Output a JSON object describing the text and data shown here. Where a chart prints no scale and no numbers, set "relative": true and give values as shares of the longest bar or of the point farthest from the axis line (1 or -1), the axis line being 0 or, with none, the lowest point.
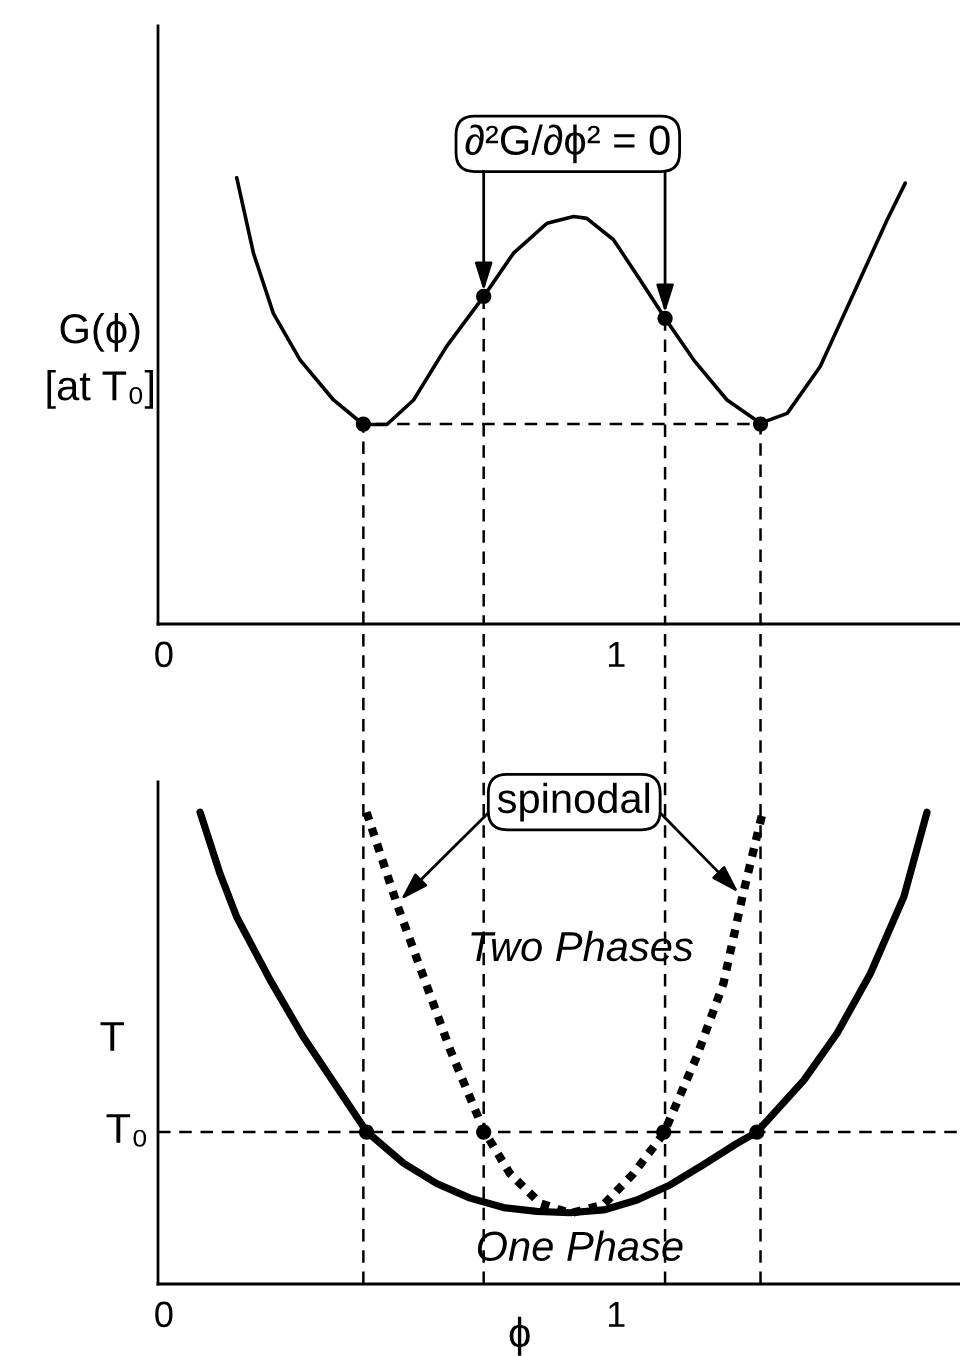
{
  "chart_data": [
    {
      "type": "line",
      "relative": true,
      "ylabel": "G(ϕ)\n[at T₀]",
      "xlim": [
        -0.013,
        1.76
      ],
      "xticks": [
        0,
        1
      ],
      "series": [
        {
          "color": "#000000",
          "line_style": "solid",
          "x": [
            0.161,
            0.198,
            0.242,
            0.301,
            0.375,
            0.441,
            0.493,
            0.552,
            0.625,
            0.707,
            0.773,
            0.847,
            0.906,
            0.935,
            0.994,
            1.053,
            1.108,
            1.171,
            1.245,
            1.319,
            1.378,
            1.451,
            1.525,
            1.599,
            1.639
          ],
          "values": [
            1.0,
            0.831,
            0.696,
            0.592,
            0.502,
            0.447,
            0.447,
            0.502,
            0.622,
            0.734,
            0.831,
            0.898,
            0.913,
            0.909,
            0.861,
            0.771,
            0.685,
            0.592,
            0.502,
            0.45,
            0.472,
            0.577,
            0.741,
            0.906,
            0.988
          ]
        },
        {
          "color": "#000000",
          "line_style": "dashed",
          "x": [
            0.441,
            0.441,
            1.319,
            1.319
          ],
          "values": [
            0,
            0.448,
            0.448,
            0
          ]
        },
        {
          "color": "#000000",
          "line_style": "dashed",
          "x": [
            0.707,
            0.707
          ],
          "values": [
            0.734,
            0
          ]
        },
        {
          "color": "#000000",
          "line_style": "dashed",
          "x": [
            1.108,
            1.108
          ],
          "values": [
            0.685,
            0
          ]
        },
        {
          "type": "scatter",
          "color": "#000000",
          "marker": "circle",
          "x": [
            0.441,
            0.707,
            1.108,
            1.319
          ],
          "values": [
            0.448,
            0.734,
            0.685,
            0.448
          ]
        }
      ],
      "annotations": [
        "∂²G/∂ϕ² = 0"
      ]
    },
    {
      "type": "line",
      "relative": true,
      "xlabel": "ϕ",
      "ylabel": "T",
      "xlim": [
        -0.013,
        1.76
      ],
      "xticks": [
        0,
        1
      ],
      "series": [
        {
          "color": "#000000",
          "line_style": "solid",
          "x": [
            0.08,
            0.124,
            0.161,
            0.235,
            0.308,
            0.382,
            0.448,
            0.53,
            0.603,
            0.677,
            0.751,
            0.824,
            0.898,
            0.972,
            1.046,
            1.119,
            1.193,
            1.267,
            1.311,
            1.415,
            1.488,
            1.562,
            1.636,
            1.687
          ],
          "values": [
            1.0,
            0.87,
            0.778,
            0.644,
            0.524,
            0.418,
            0.323,
            0.256,
            0.213,
            0.182,
            0.162,
            0.154,
            0.151,
            0.157,
            0.178,
            0.21,
            0.253,
            0.298,
            0.322,
            0.432,
            0.531,
            0.658,
            0.821,
            1.0
          ]
        },
        {
          "color": "#000000",
          "line_style": "dotted",
          "x": [
            0.448,
            0.515,
            0.574,
            0.633,
            0.707,
            0.765,
            0.832,
            0.898,
            0.972,
            1.038,
            1.105,
            1.178,
            1.237,
            1.279,
            1.323
          ],
          "values": [
            1.0,
            0.806,
            0.651,
            0.496,
            0.326,
            0.234,
            0.171,
            0.15,
            0.168,
            0.234,
            0.319,
            0.482,
            0.637,
            0.821,
            0.997
          ]
        },
        {
          "type": "scatter",
          "color": "#000000",
          "marker": "circle",
          "x": [
            0.448,
            0.707,
            1.105,
            1.311
          ],
          "values": [
            0.322,
            0.322,
            0.322,
            0.322
          ]
        }
      ],
      "ref_lines": [
        {
          "axis": "y",
          "value": 0.322,
          "label": "T₀",
          "line_style": "dashed",
          "color": "#000000"
        },
        {
          "axis": "x",
          "value": 0.441,
          "line_style": "dashed",
          "color": "#000000"
        },
        {
          "axis": "x",
          "value": 0.707,
          "line_style": "dashed",
          "color": "#000000"
        },
        {
          "axis": "x",
          "value": 1.108,
          "line_style": "dashed",
          "color": "#000000"
        },
        {
          "axis": "x",
          "value": 1.319,
          "line_style": "dashed",
          "color": "#000000"
        }
      ],
      "annotations": [
        "spinodal",
        "Two Phases",
        "One Phase"
      ]
    }
  ]
}
